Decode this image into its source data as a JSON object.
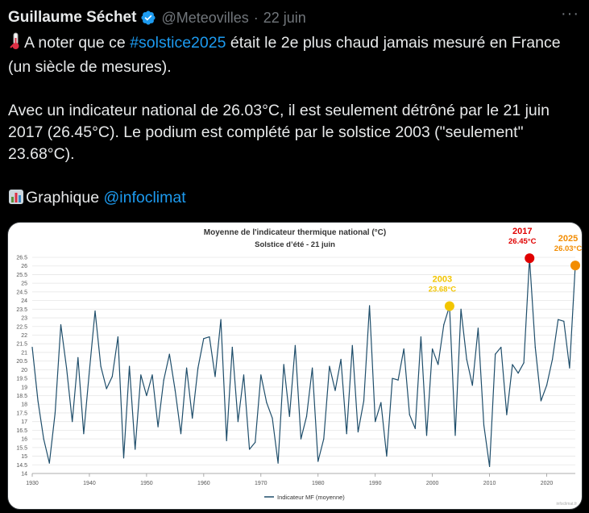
{
  "tweet": {
    "author_name": "Guillaume Séchet",
    "handle": "@Meteovilles",
    "separator": "·",
    "date": "22 juin",
    "more_label": "···",
    "line1_pre": "A noter que ce ",
    "hashtag": "#solstice2025",
    "line1_post": " était le 2e plus chaud jamais mesuré en France (un siècle de mesures).",
    "line2": "Avec un indicateur national de 26.03°C, il est seulement détrôné par le 21 juin 2017 (26.45°C). Le podium est complété par le solstice 2003 (\"seulement\" 23.68°C).",
    "line3_pre": "Graphique ",
    "mention": "@infoclimat",
    "icons": {
      "verified": "verified-badge-icon",
      "thermometer": "thermometer-emoji-icon",
      "chart": "bar-chart-emoji-icon",
      "more": "more-icon"
    },
    "colors": {
      "link": "#1d9bf0",
      "verified": "#1d9bf0"
    }
  },
  "chart_data": {
    "type": "line",
    "title": "Moyenne de l'indicateur thermique national (°C)",
    "subtitle": "Solstice d’été - 21 juin",
    "xlim": [
      1930,
      2025
    ],
    "ylim": [
      14,
      26.5
    ],
    "x_ticks": [
      "1930",
      "1940",
      "1950",
      "1960",
      "1970",
      "1980",
      "1990",
      "2000",
      "2010",
      "2020"
    ],
    "y_ticks": [
      "14",
      "14.5",
      "15",
      "15.5",
      "16",
      "16.5",
      "17",
      "17.5",
      "18",
      "18.5",
      "19",
      "19.5",
      "20",
      "20.5",
      "21",
      "21.5",
      "22",
      "22.5",
      "23",
      "23.5",
      "24",
      "24.5",
      "25",
      "25.5",
      "26",
      "26.5"
    ],
    "grid": true,
    "legend_position": "bottom-center",
    "series": [
      {
        "name": "Indicateur MF (moyenne)",
        "color": "#1f4e6b",
        "x": [
          1930,
          1931,
          1932,
          1933,
          1934,
          1935,
          1936,
          1937,
          1938,
          1939,
          1940,
          1941,
          1942,
          1943,
          1944,
          1945,
          1946,
          1947,
          1948,
          1949,
          1950,
          1951,
          1952,
          1953,
          1954,
          1955,
          1956,
          1957,
          1958,
          1959,
          1960,
          1961,
          1962,
          1963,
          1964,
          1965,
          1966,
          1967,
          1968,
          1969,
          1970,
          1971,
          1972,
          1973,
          1974,
          1975,
          1976,
          1977,
          1978,
          1979,
          1980,
          1981,
          1982,
          1983,
          1984,
          1985,
          1986,
          1987,
          1988,
          1989,
          1990,
          1991,
          1992,
          1993,
          1994,
          1995,
          1996,
          1997,
          1998,
          1999,
          2000,
          2001,
          2002,
          2003,
          2004,
          2005,
          2006,
          2007,
          2008,
          2009,
          2010,
          2011,
          2012,
          2013,
          2014,
          2015,
          2016,
          2017,
          2018,
          2019,
          2020,
          2021,
          2022,
          2023,
          2024,
          2025
        ],
        "y": [
          21.3,
          18.2,
          16.0,
          14.6,
          17.5,
          22.6,
          20.1,
          17.0,
          20.7,
          16.3,
          19.9,
          23.4,
          20.2,
          18.9,
          19.6,
          21.9,
          14.9,
          20.2,
          15.4,
          19.7,
          18.5,
          19.7,
          16.7,
          19.4,
          20.9,
          18.8,
          16.3,
          20.1,
          17.2,
          20.1,
          21.8,
          21.9,
          19.6,
          22.9,
          15.9,
          21.3,
          17.0,
          19.7,
          15.4,
          15.8,
          19.7,
          18.1,
          17.2,
          14.6,
          20.3,
          17.3,
          21.4,
          16.0,
          17.3,
          20.1,
          14.7,
          16.0,
          20.2,
          18.8,
          20.6,
          16.3,
          21.4,
          16.4,
          18.2,
          23.7,
          17.0,
          18.1,
          15.0,
          19.5,
          19.4,
          21.2,
          17.4,
          16.6,
          21.9,
          16.2,
          21.2,
          20.3,
          22.6,
          23.68,
          16.2,
          23.5,
          20.6,
          19.1,
          22.4,
          16.8,
          14.4,
          20.9,
          21.3,
          17.4,
          20.3,
          19.8,
          20.4,
          26.45,
          21.3,
          18.2,
          19.1,
          20.6,
          22.9,
          22.8,
          20.1,
          26.03
        ]
      }
    ],
    "annotations": [
      {
        "year": "2003",
        "value_label": "23.68°C",
        "x": 2003,
        "y": 23.68,
        "color": "#f2c500",
        "text_color": "#f2c500"
      },
      {
        "year": "2017",
        "value_label": "26.45°C",
        "x": 2017,
        "y": 26.45,
        "color": "#e00000",
        "text_color": "#e00000"
      },
      {
        "year": "2025",
        "value_label": "26.03°C",
        "x": 2025,
        "y": 26.03,
        "color": "#f28c00",
        "text_color": "#f28c00"
      }
    ],
    "watermark": "infoclimat.fr"
  }
}
